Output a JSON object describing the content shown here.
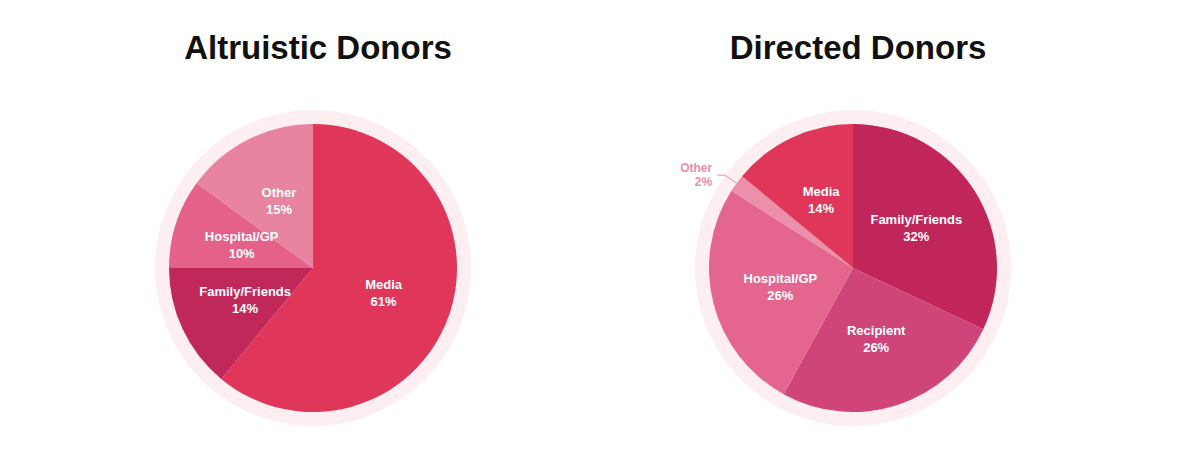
{
  "chart_data": [
    {
      "type": "pie",
      "title": "Altruistic Donors",
      "categories": [
        "Media",
        "Family/Friends",
        "Hospital/GP",
        "Other"
      ],
      "values": [
        61,
        14,
        10,
        15
      ],
      "value_labels": [
        "61%",
        "14%",
        "10%",
        "15%"
      ],
      "colors": [
        "#e0365a",
        "#c0285a",
        "#e4628a",
        "#e883a0"
      ],
      "data_labels": true
    },
    {
      "type": "pie",
      "title": "Directed Donors",
      "categories": [
        "Family/Friends",
        "Recipient",
        "Hospital/GP",
        "Other",
        "Media"
      ],
      "values": [
        32,
        26,
        26,
        2,
        14
      ],
      "value_labels": [
        "32%",
        "26%",
        "26%",
        "2%",
        "14%"
      ],
      "colors": [
        "#c0265a",
        "#cf4479",
        "#e4668e",
        "#eb8fab",
        "#e0365a"
      ],
      "data_labels": true
    }
  ]
}
